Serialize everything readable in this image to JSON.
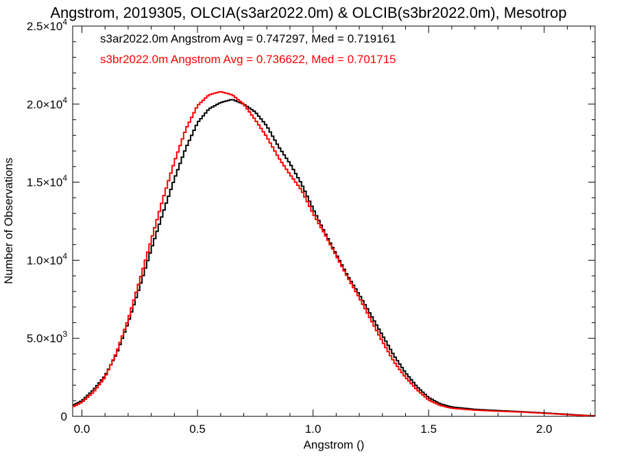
{
  "chart_data": {
    "type": "line",
    "title": "Angstrom, 2019305, OLCIA(s3ar2022.0m) & OLCIB(s3br2022.0m), Mesotrop",
    "xlabel": "Angstrom ()",
    "ylabel": "Number of Observations",
    "xlim": [
      -0.04,
      2.22
    ],
    "ylim": [
      0,
      25000
    ],
    "x_ticks": [
      {
        "value": 0.0,
        "label": "0.0"
      },
      {
        "value": 0.5,
        "label": "0.5"
      },
      {
        "value": 1.0,
        "label": "1.0"
      },
      {
        "value": 1.5,
        "label": "1.5"
      },
      {
        "value": 2.0,
        "label": "2.0"
      }
    ],
    "y_ticks": [
      {
        "value": 0,
        "mant": "0",
        "exp": ""
      },
      {
        "value": 5000,
        "mant": "5.0×10",
        "exp": "3"
      },
      {
        "value": 10000,
        "mant": "1.0×10",
        "exp": "4"
      },
      {
        "value": 15000,
        "mant": "1.5×10",
        "exp": "4"
      },
      {
        "value": 20000,
        "mant": "2.0×10",
        "exp": "4"
      },
      {
        "value": 25000,
        "mant": "2.5×10",
        "exp": "4"
      }
    ],
    "grid": false,
    "legend_position": "top-left",
    "series": [
      {
        "label": "s3ar2022.0m Angstrom Avg = 0.747297, Med = 0.719161",
        "color": "#000000",
        "x": [
          -0.04,
          0.0,
          0.05,
          0.1,
          0.15,
          0.2,
          0.25,
          0.3,
          0.35,
          0.4,
          0.45,
          0.5,
          0.55,
          0.6,
          0.65,
          0.7,
          0.75,
          0.8,
          0.85,
          0.9,
          0.95,
          1.0,
          1.05,
          1.1,
          1.15,
          1.2,
          1.25,
          1.3,
          1.35,
          1.4,
          1.45,
          1.5,
          1.55,
          1.6,
          1.7,
          1.8,
          1.9,
          2.0,
          2.1,
          2.2
        ],
        "y": [
          700,
          1000,
          1700,
          2600,
          4000,
          6000,
          8300,
          10700,
          13000,
          15200,
          17200,
          18800,
          19700,
          20100,
          20300,
          20000,
          19500,
          18600,
          17300,
          16200,
          14900,
          13300,
          11800,
          10400,
          9000,
          7800,
          6500,
          5200,
          3900,
          2800,
          1900,
          1200,
          800,
          600,
          450,
          370,
          300,
          220,
          130,
          40
        ]
      },
      {
        "label": "s3br2022.0m Angstrom Avg = 0.736622, Med = 0.701715",
        "color": "#ff0000",
        "x": [
          -0.04,
          0.0,
          0.05,
          0.1,
          0.15,
          0.2,
          0.25,
          0.3,
          0.35,
          0.4,
          0.45,
          0.5,
          0.55,
          0.6,
          0.65,
          0.7,
          0.75,
          0.8,
          0.85,
          0.9,
          0.95,
          1.0,
          1.05,
          1.1,
          1.15,
          1.2,
          1.25,
          1.3,
          1.35,
          1.4,
          1.45,
          1.5,
          1.55,
          1.6,
          1.7,
          1.8,
          1.9,
          2.0,
          2.1,
          2.2
        ],
        "y": [
          600,
          900,
          1550,
          2500,
          4100,
          6200,
          8700,
          11300,
          13900,
          16300,
          18400,
          19900,
          20600,
          20800,
          20600,
          20000,
          19000,
          17900,
          16600,
          15500,
          14500,
          13000,
          11700,
          10300,
          8900,
          7600,
          6200,
          4800,
          3500,
          2500,
          1700,
          1050,
          700,
          520,
          400,
          330,
          280,
          200,
          110,
          30
        ]
      }
    ]
  }
}
